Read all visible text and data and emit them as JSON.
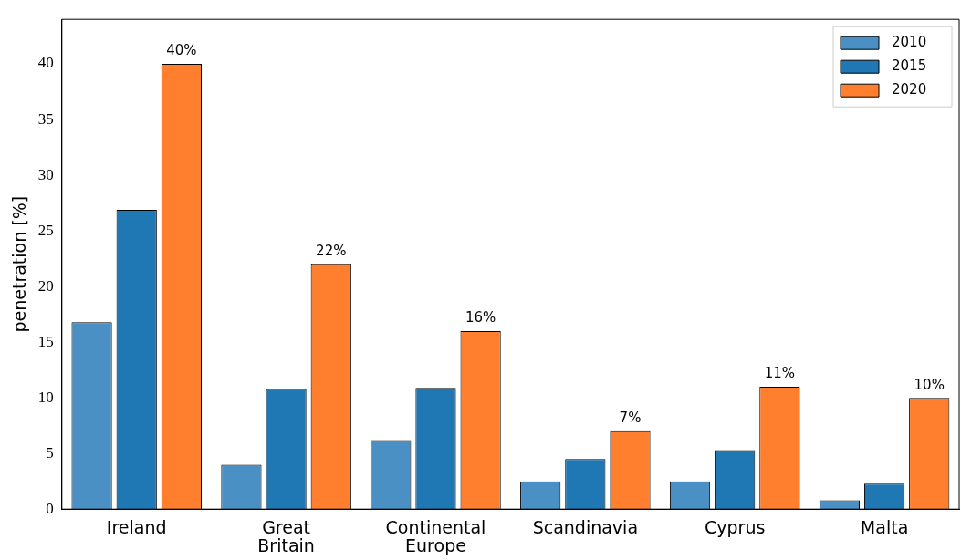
{
  "chart_data": {
    "type": "bar",
    "ylabel": "penetration [%]",
    "categories": [
      "Ireland",
      "Great Britain",
      "Continental Europe",
      "Scandinavia",
      "Cyprus",
      "Malta"
    ],
    "series": [
      {
        "name": "2010",
        "color": "#4a90c4",
        "values": [
          16.8,
          4.0,
          6.2,
          2.5,
          2.5,
          0.8
        ]
      },
      {
        "name": "2015",
        "color": "#1f77b4",
        "values": [
          26.9,
          10.8,
          10.9,
          4.5,
          5.3,
          2.3
        ]
      },
      {
        "name": "2020",
        "color": "#ff7f2e",
        "values": [
          40,
          22,
          16,
          7,
          11,
          10
        ],
        "value_labels": [
          "40%",
          "22%",
          "16%",
          "7%",
          "11%",
          "10%"
        ]
      }
    ],
    "ylim": [
      0,
      44
    ],
    "yticks": [
      0,
      5,
      10,
      15,
      20,
      25,
      30,
      35,
      40
    ],
    "grid": false,
    "legend": "top right"
  }
}
